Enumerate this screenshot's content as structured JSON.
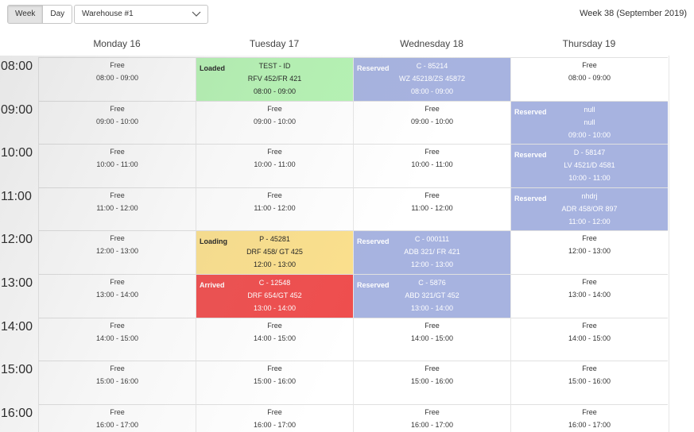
{
  "toolbar": {
    "week_label": "Week",
    "day_label": "Day",
    "warehouse": "Warehouse #1",
    "week_title": "Week 38 (September 2019)"
  },
  "days": [
    "Monday 16",
    "Tuesday 17",
    "Wednesday 18",
    "Thursday 19"
  ],
  "hours": [
    "08:00",
    "09:00",
    "10:00",
    "11:00",
    "12:00",
    "13:00",
    "14:00",
    "15:00",
    "16:00"
  ],
  "free_label": "Free",
  "slots": {
    "mon": [
      "08:00 - 09:00",
      "09:00 - 10:00",
      "10:00 - 11:00",
      "11:00 - 12:00",
      "12:00 - 13:00",
      "13:00 - 14:00",
      "14:00 - 15:00",
      "15:00 - 16:00",
      "16:00 - 17:00"
    ],
    "tue": [
      "08:00 - 09:00",
      "09:00 - 10:00",
      "10:00 - 11:00",
      "11:00 - 12:00",
      "12:00 - 13:00",
      "13:00 - 14:00",
      "14:00 - 15:00",
      "15:00 - 16:00",
      "16:00 - 17:00"
    ],
    "wed": [
      "08:00 - 09:00",
      "09:00 - 10:00",
      "10:00 - 11:00",
      "11:00 - 12:00",
      "12:00 - 13:00",
      "13:00 - 14:00",
      "14:00 - 15:00",
      "15:00 - 16:00",
      "16:00 - 17:00"
    ],
    "thu": [
      "08:00 - 09:00",
      "09:00 - 10:00",
      "10:00 - 11:00",
      "11:00 - 12:00",
      "12:00 - 13:00",
      "13:00 - 14:00",
      "14:00 - 15:00",
      "15:00 - 16:00",
      "16:00 - 17:00"
    ]
  },
  "bookings": {
    "tue_0800": {
      "status": "Loaded",
      "id": "TEST - ID",
      "plates": "RFV 452/FR 421",
      "time": "08:00 - 09:00",
      "color": "#b6f4b4"
    },
    "tue_1200": {
      "status": "Loading",
      "id": "P - 45281",
      "plates": "DRF 458/ GT 425",
      "time": "12:00 - 13:00",
      "color": "#fbe08d"
    },
    "tue_1300": {
      "status": "Arrived",
      "id": "C - 12548",
      "plates": "DRF 654/GT 452",
      "time": "13:00 - 14:00",
      "color": "#ef4e4e"
    },
    "wed_0800": {
      "status": "Reserved",
      "id": "C - 85214",
      "plates": "WZ 45218/ZS 45872",
      "time": "08:00 - 09:00",
      "color": "#a7b3e0"
    },
    "wed_1200": {
      "status": "Reserved",
      "id": "C - 000111",
      "plates": "ADB 321/ FR 421",
      "time": "12:00 - 13:00",
      "color": "#a7b3e0"
    },
    "wed_1300": {
      "status": "Reserved",
      "id": "C - 5876",
      "plates": "ABD 321/GT 452",
      "time": "13:00 - 14:00",
      "color": "#a7b3e0"
    },
    "thu_0900": {
      "status": "Reserved",
      "id": "null",
      "plates": "null",
      "time": "09:00 - 10:00",
      "color": "#a7b3e0"
    },
    "thu_1000": {
      "status": "Reserved",
      "id": "D - 58147",
      "plates": "LV 4521/D 4581",
      "time": "10:00 - 11:00",
      "color": "#a7b3e0"
    },
    "thu_1100": {
      "status": "Reserved",
      "id": "nhdrj",
      "plates": "ADR 458/OR 897",
      "time": "11:00 - 12:00",
      "color": "#a7b3e0"
    }
  }
}
